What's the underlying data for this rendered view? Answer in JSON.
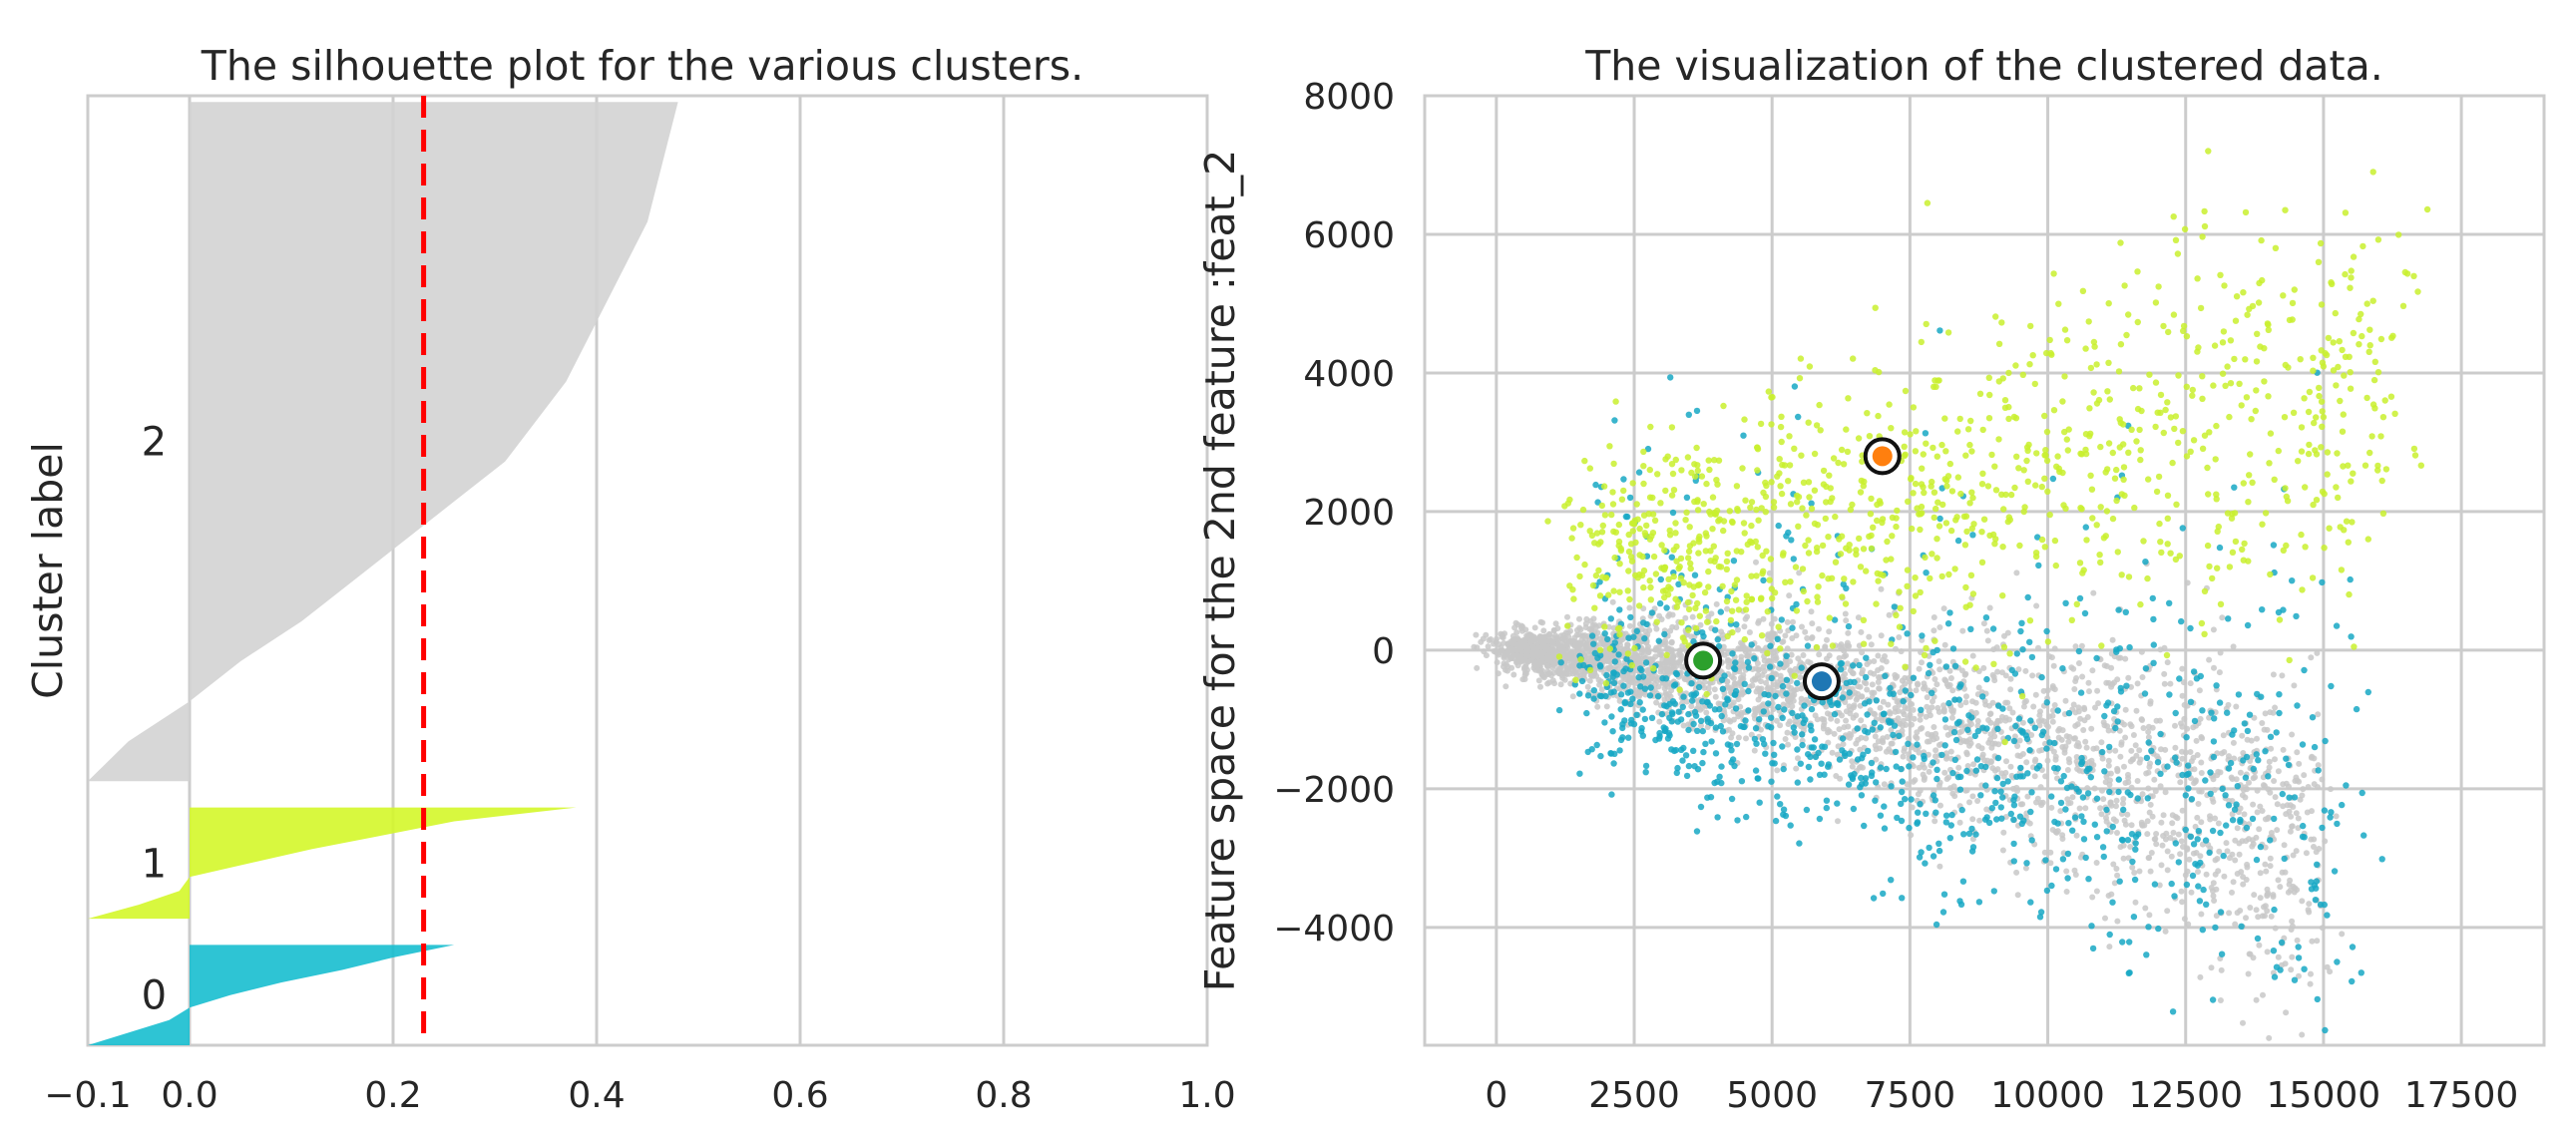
{
  "chart_data": [
    {
      "type": "area",
      "title": "The silhouette plot for the various clusters.",
      "xlabel": "",
      "ylabel": "Cluster label",
      "xlim": [
        -0.1,
        1.0
      ],
      "xticks": [
        -0.1,
        0.0,
        0.2,
        0.4,
        0.6,
        0.8,
        1.0
      ],
      "xtick_labels": [
        "−0.1",
        "0.0",
        "0.2",
        "0.4",
        "0.6",
        "0.8",
        "1.0"
      ],
      "average_silhouette_score": 0.23,
      "average_line_color": "#ff0000",
      "grid": true,
      "clusters": [
        {
          "label": "0",
          "color": "#17becf",
          "size": 650,
          "silhouette_profile": [
            -0.1,
            -0.06,
            -0.02,
            0.0,
            0.04,
            0.09,
            0.15,
            0.2,
            0.26
          ]
        },
        {
          "label": "1",
          "color": "#d4f72a",
          "size": 720,
          "silhouette_profile": [
            -0.1,
            -0.05,
            -0.01,
            0.0,
            0.06,
            0.12,
            0.19,
            0.26,
            0.38
          ]
        },
        {
          "label": "2",
          "color": "#d3d3d3",
          "size": 4400,
          "silhouette_profile": [
            -0.1,
            -0.06,
            0.0,
            0.05,
            0.11,
            0.16,
            0.21,
            0.26,
            0.31,
            0.34,
            0.37,
            0.39,
            0.41,
            0.43,
            0.45,
            0.46,
            0.47,
            0.48
          ]
        }
      ]
    },
    {
      "type": "scatter",
      "title": "The visualization of the clustered data.",
      "xlabel": "",
      "ylabel": "Feature space for the 2nd feature :feat_2",
      "xlim": [
        -1300,
        19000
      ],
      "ylim": [
        -5700,
        8000
      ],
      "xticks": [
        0,
        2500,
        5000,
        7500,
        10000,
        12500,
        15000,
        17500
      ],
      "xtick_labels": [
        "0",
        "2500",
        "5000",
        "7500",
        "10000",
        "12500",
        "15000",
        "17500"
      ],
      "yticks": [
        -4000,
        -2000,
        0,
        2000,
        4000,
        6000,
        8000
      ],
      "ytick_labels": [
        "−4000",
        "−2000",
        "0",
        "2000",
        "4000",
        "6000",
        "8000"
      ],
      "grid": true,
      "series": [
        {
          "color": "#c8c8c8"
        },
        {
          "color": "#17a8c4"
        },
        {
          "color": "#c9f02e"
        }
      ],
      "centers": [
        {
          "x": 5900,
          "y": -450,
          "color": "#1f77b4"
        },
        {
          "x": 3750,
          "y": -150,
          "color": "#2ca02c"
        },
        {
          "x": 7000,
          "y": 2800,
          "color": "#ff7f0e"
        }
      ]
    }
  ]
}
